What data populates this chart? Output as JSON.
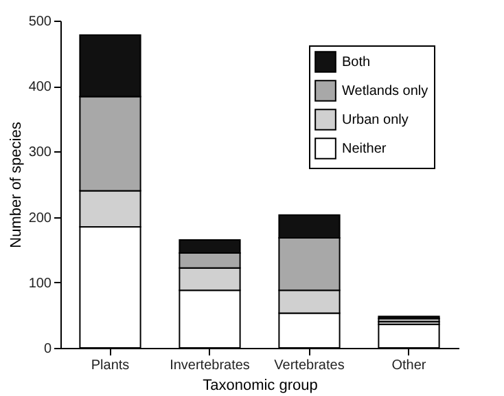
{
  "chart_data": {
    "type": "bar",
    "stacked": true,
    "xlabel": "Taxonomic group",
    "ylabel": "Number of species",
    "categories": [
      "Plants",
      "Invertebrates",
      "Vertebrates",
      "Other"
    ],
    "series": [
      {
        "name": "Neither",
        "color": "#ffffff",
        "values": [
          185,
          88,
          53,
          36
        ]
      },
      {
        "name": "Urban only",
        "color": "#d0d0d0",
        "values": [
          55,
          34,
          35,
          4
        ]
      },
      {
        "name": "Wetlands only",
        "color": "#a8a8a8",
        "values": [
          144,
          23,
          80,
          5
        ]
      },
      {
        "name": "Both",
        "color": "#111111",
        "values": [
          94,
          20,
          35,
          3
        ]
      }
    ],
    "ylim": [
      0,
      500
    ],
    "yticks": [
      0,
      100,
      200,
      300,
      400,
      500
    ],
    "grid": false,
    "legend": "top right"
  }
}
